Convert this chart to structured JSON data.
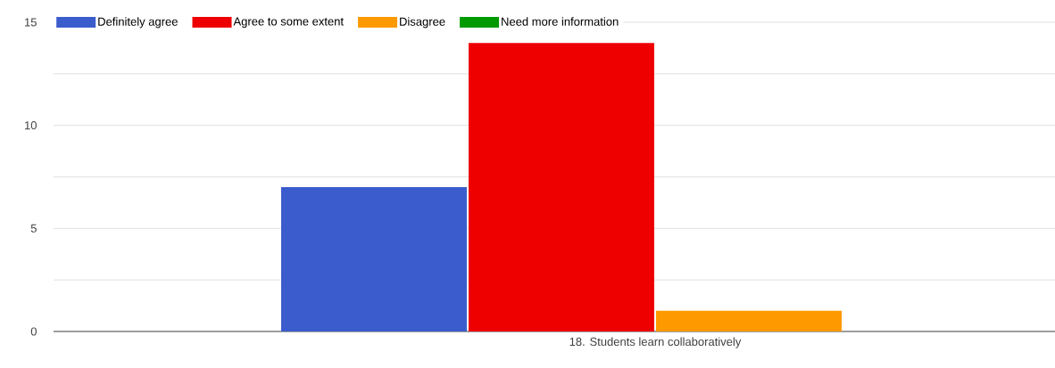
{
  "chart_data": {
    "type": "bar",
    "categories": [
      "18. Students learn collaboratively"
    ],
    "series": [
      {
        "name": "Definitely agree",
        "color": "#3a5ccc",
        "values": [
          7
        ]
      },
      {
        "name": "Agree to some extent",
        "color": "#ee0000",
        "values": [
          14
        ]
      },
      {
        "name": "Disagree",
        "color": "#ff9900",
        "values": [
          1
        ]
      },
      {
        "name": "Need more information",
        "color": "#009900",
        "values": [
          0
        ]
      }
    ],
    "ylim": [
      0,
      15
    ],
    "yticks": [
      0,
      {
        "value": 2.5,
        "label": null
      },
      5,
      {
        "value": 7.5,
        "label": null
      },
      10,
      {
        "value": 12.5,
        "label": null
      },
      15
    ],
    "grid": "y",
    "legend": "top"
  }
}
